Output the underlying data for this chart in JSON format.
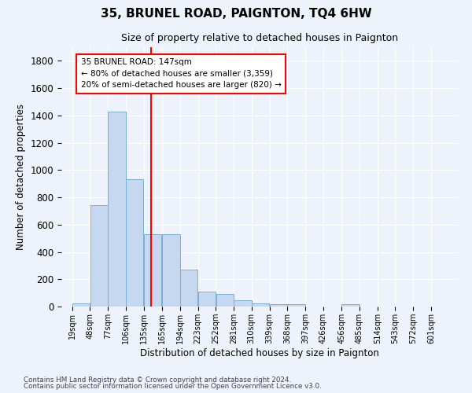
{
  "title": "35, BRUNEL ROAD, PAIGNTON, TQ4 6HW",
  "subtitle": "Size of property relative to detached houses in Paignton",
  "xlabel": "Distribution of detached houses by size in Paignton",
  "ylabel": "Number of detached properties",
  "bin_labels": [
    "19sqm",
    "48sqm",
    "77sqm",
    "106sqm",
    "135sqm",
    "165sqm",
    "194sqm",
    "223sqm",
    "252sqm",
    "281sqm",
    "310sqm",
    "339sqm",
    "368sqm",
    "397sqm",
    "426sqm",
    "456sqm",
    "485sqm",
    "514sqm",
    "543sqm",
    "572sqm",
    "601sqm"
  ],
  "bar_values": [
    25,
    740,
    1430,
    935,
    530,
    530,
    270,
    110,
    95,
    45,
    25,
    15,
    15,
    0,
    0,
    15,
    0,
    0,
    0,
    0,
    0
  ],
  "bar_color": "#c5d8f0",
  "bar_edge_color": "#7aafd4",
  "vline_x": 147,
  "vline_color": "red",
  "annotation_text": "35 BRUNEL ROAD: 147sqm\n← 80% of detached houses are smaller (3,359)\n20% of semi-detached houses are larger (820) →",
  "annotation_box_color": "white",
  "annotation_box_edge": "red",
  "ylim": [
    0,
    1900
  ],
  "yticks": [
    0,
    200,
    400,
    600,
    800,
    1000,
    1200,
    1400,
    1600,
    1800
  ],
  "footnote1": "Contains HM Land Registry data © Crown copyright and database right 2024.",
  "footnote2": "Contains public sector information licensed under the Open Government Licence v3.0.",
  "background_color": "#eef2fb",
  "grid_color": "white"
}
